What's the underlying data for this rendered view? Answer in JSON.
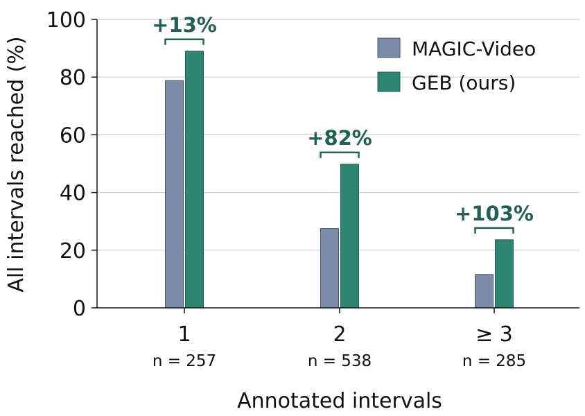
{
  "chart_data": {
    "type": "bar",
    "categories": [
      "1",
      "2",
      "≥ 3"
    ],
    "category_counts": [
      "n = 257",
      "n = 538",
      "n = 285"
    ],
    "series": [
      {
        "name": "MAGIC-Video",
        "values": [
          78.8,
          27.5,
          11.6
        ],
        "color": "#7b8ca8"
      },
      {
        "name": "GEB (ours)",
        "values": [
          89.0,
          49.8,
          23.6
        ],
        "color": "#2e8573"
      }
    ],
    "improvements": [
      "+13%",
      "+82%",
      "+103%"
    ],
    "improvement_color": "#245f55",
    "xlabel": "Annotated intervals",
    "ylabel": "All intervals reached (%)",
    "ylim": [
      0,
      100
    ],
    "yticks": [
      0,
      20,
      40,
      60,
      80,
      100
    ],
    "grid": "horizontal",
    "legend_position": "top-right"
  }
}
